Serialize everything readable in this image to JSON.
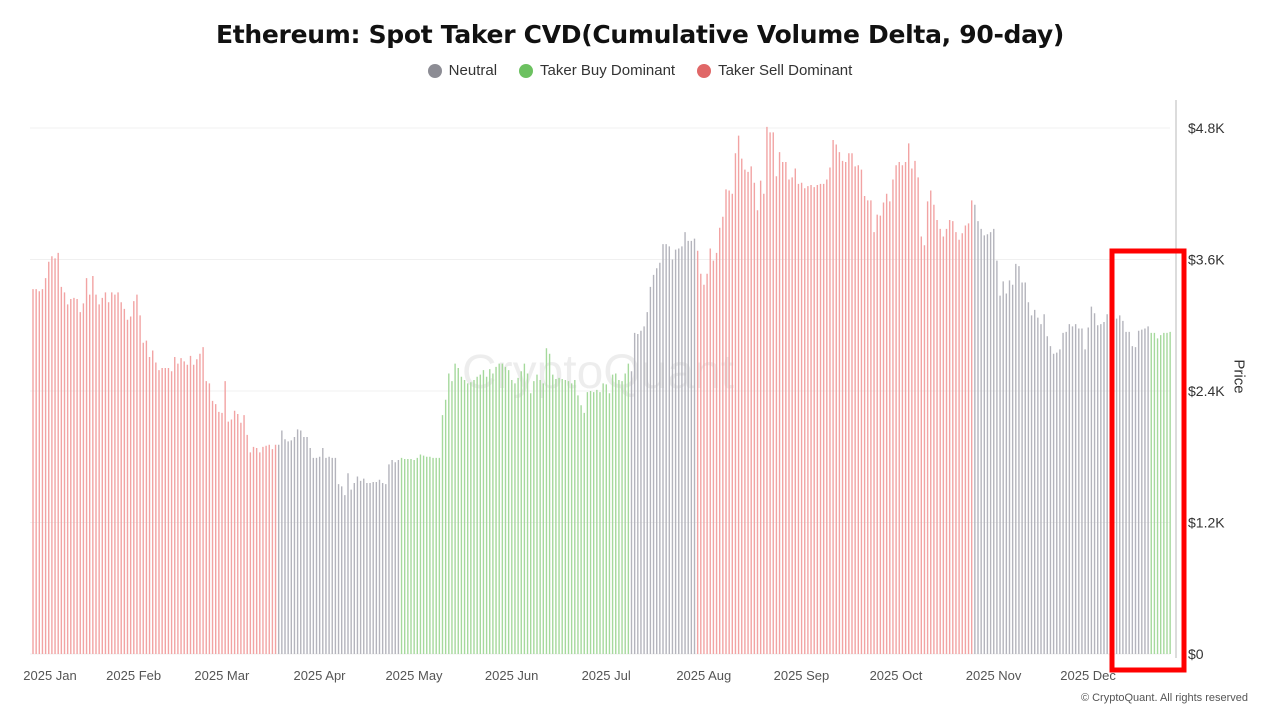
{
  "title": "Ethereum: Spot Taker CVD(Cumulative Volume Delta, 90-day)",
  "legend": [
    {
      "label": "Neutral",
      "color": "#8c8c94"
    },
    {
      "label": "Taker Buy Dominant",
      "color": "#6cc160"
    },
    {
      "label": "Taker Sell Dominant",
      "color": "#e06767"
    }
  ],
  "watermark": "CryptoQuant",
  "copyright": "© CryptoQuant. All rights reserved",
  "chart_data": {
    "type": "bar",
    "title": "Ethereum: Spot Taker CVD(Cumulative Volume Delta, 90-day)",
    "ylabel": "Price",
    "y_axis_side": "right",
    "ylim": [
      0,
      4800
    ],
    "y_ticks": [
      {
        "value": 0,
        "label": "$0"
      },
      {
        "value": 1200,
        "label": "$1.2K"
      },
      {
        "value": 2400,
        "label": "$2.4K"
      },
      {
        "value": 3600,
        "label": "$3.6K"
      },
      {
        "value": 4800,
        "label": "$4.8K"
      }
    ],
    "x_start": "2025-01-01",
    "x_step": "1 day",
    "x_ticks": [
      {
        "date": "2025-01-01",
        "label": "2025 Jan"
      },
      {
        "date": "2025-02-01",
        "label": "2025 Feb"
      },
      {
        "date": "2025-03-01",
        "label": "2025 Mar"
      },
      {
        "date": "2025-04-01",
        "label": "2025 Apr"
      },
      {
        "date": "2025-05-01",
        "label": "2025 May"
      },
      {
        "date": "2025-06-01",
        "label": "2025 Jun"
      },
      {
        "date": "2025-07-01",
        "label": "2025 Jul"
      },
      {
        "date": "2025-08-01",
        "label": "2025 Aug"
      },
      {
        "date": "2025-09-01",
        "label": "2025 Sep"
      },
      {
        "date": "2025-10-01",
        "label": "2025 Oct"
      },
      {
        "date": "2025-11-01",
        "label": "2025 Nov"
      },
      {
        "date": "2025-12-01",
        "label": "2025 Dec"
      }
    ],
    "grid": true,
    "legend_position": "top",
    "series_colors": {
      "Neutral": "#b4b4bc",
      "Taker Buy Dominant": "#a5d99c",
      "Taker Sell Dominant": "#f2a3a3"
    },
    "segments": [
      {
        "regime": "Taker Sell Dominant",
        "values": [
          3330,
          3330,
          3310,
          3330,
          3430,
          3580,
          3630,
          3610,
          3660,
          3350,
          3300,
          3190,
          3240,
          3250,
          3240,
          3120,
          3200,
          3430,
          3280,
          3450,
          3280,
          3190,
          3250,
          3300,
          3210,
          3300,
          3280,
          3300,
          3210,
          3150,
          3050,
          3080,
          3220,
          3280,
          3090,
          2840,
          2860,
          2710,
          2770,
          2660,
          2590,
          2610,
          2610,
          2610,
          2580,
          2710,
          2650,
          2700,
          2670,
          2640,
          2720,
          2640,
          2690,
          2740,
          2800,
          2490,
          2470,
          2310,
          2280,
          2210,
          2200,
          2490,
          2120,
          2140,
          2220,
          2190,
          2110,
          2180,
          2000,
          1840,
          1890,
          1880,
          1840,
          1890,
          1900,
          1910,
          1870,
          1910
        ]
      },
      {
        "regime": "Neutral",
        "values": [
          1910,
          2040,
          1960,
          1940,
          1950,
          1980,
          2050,
          2040,
          1980,
          1980,
          1880,
          1790,
          1790,
          1800,
          1880,
          1790,
          1800,
          1790,
          1790,
          1550,
          1530,
          1450,
          1650,
          1500,
          1560,
          1620,
          1580,
          1600,
          1560,
          1560,
          1570,
          1570,
          1590,
          1560,
          1550,
          1730,
          1770,
          1750,
          1770
        ]
      },
      {
        "regime": "Taker Buy Dominant",
        "values": [
          1790,
          1780,
          1780,
          1780,
          1770,
          1790,
          1820,
          1810,
          1800,
          1800,
          1790,
          1790,
          1790,
          2180,
          2320,
          2560,
          2490,
          2650,
          2610,
          2530,
          2500,
          2470,
          2480,
          2500,
          2530,
          2550,
          2590,
          2530,
          2600,
          2560,
          2620,
          2650,
          2650,
          2620,
          2590,
          2500,
          2470,
          2520,
          2580,
          2650,
          2560,
          2380,
          2490,
          2550,
          2500,
          2470,
          2790,
          2740,
          2550,
          2510,
          2520,
          2510,
          2500,
          2490,
          2470,
          2500,
          2360,
          2270,
          2200,
          2390,
          2400,
          2390,
          2410,
          2390,
          2470,
          2460,
          2380,
          2550,
          2560,
          2500,
          2490,
          2560,
          2650
        ]
      },
      {
        "regime": "Neutral",
        "values": [
          2580,
          2930,
          2920,
          2950,
          2990,
          3120,
          3350,
          3460,
          3520,
          3570,
          3740,
          3740,
          3720,
          3600,
          3690,
          3700,
          3720,
          3850,
          3770,
          3770,
          3790
        ]
      },
      {
        "regime": "Taker Sell Dominant",
        "values": [
          3680,
          3470,
          3370,
          3470,
          3700,
          3590,
          3660,
          3890,
          3990,
          4240,
          4230,
          4200,
          4570,
          4730,
          4520,
          4420,
          4400,
          4450,
          4300,
          4050,
          4320,
          4200,
          4810,
          4760,
          4760,
          4360,
          4580,
          4490,
          4490,
          4330,
          4350,
          4430,
          4290,
          4300,
          4250,
          4270,
          4280,
          4260,
          4280,
          4290,
          4290,
          4330,
          4440,
          4690,
          4650,
          4580,
          4500,
          4490,
          4570,
          4570,
          4450,
          4460,
          4420,
          4180,
          4140,
          4140,
          3850,
          4010,
          4000,
          4120,
          4200,
          4130,
          4330,
          4460,
          4490,
          4460,
          4490,
          4660,
          4430,
          4500,
          4350,
          3810,
          3730,
          4130,
          4230,
          4100,
          3960,
          3880,
          3810,
          3880,
          3960,
          3950,
          3850,
          3780,
          3840,
          3910,
          3930,
          4140
        ]
      },
      {
        "regime": "Neutral",
        "values": [
          4100,
          3950,
          3880,
          3820,
          3830,
          3850,
          3880,
          3590,
          3270,
          3400,
          3290,
          3410,
          3370,
          3560,
          3540,
          3390,
          3390,
          3210,
          3090,
          3140,
          3070,
          3010,
          3100,
          2900,
          2810,
          2740,
          2750,
          2780,
          2930,
          2940,
          3010,
          2990,
          3010,
          2970,
          2970,
          2780,
          2980,
          3170,
          3110,
          3000,
          3010,
          3030,
          3100,
          3300,
          3200,
          3060,
          3090,
          3040,
          2940,
          2940,
          2810,
          2800,
          2950,
          2960,
          2970,
          2990
        ]
      },
      {
        "regime": "Taker Buy Dominant",
        "values": [
          2930,
          2930,
          2880,
          2910,
          2930,
          2930,
          2940
        ]
      }
    ],
    "annotation": {
      "type": "highlight-box",
      "color": "#ff0000",
      "covers": "2025-12 bars"
    }
  }
}
